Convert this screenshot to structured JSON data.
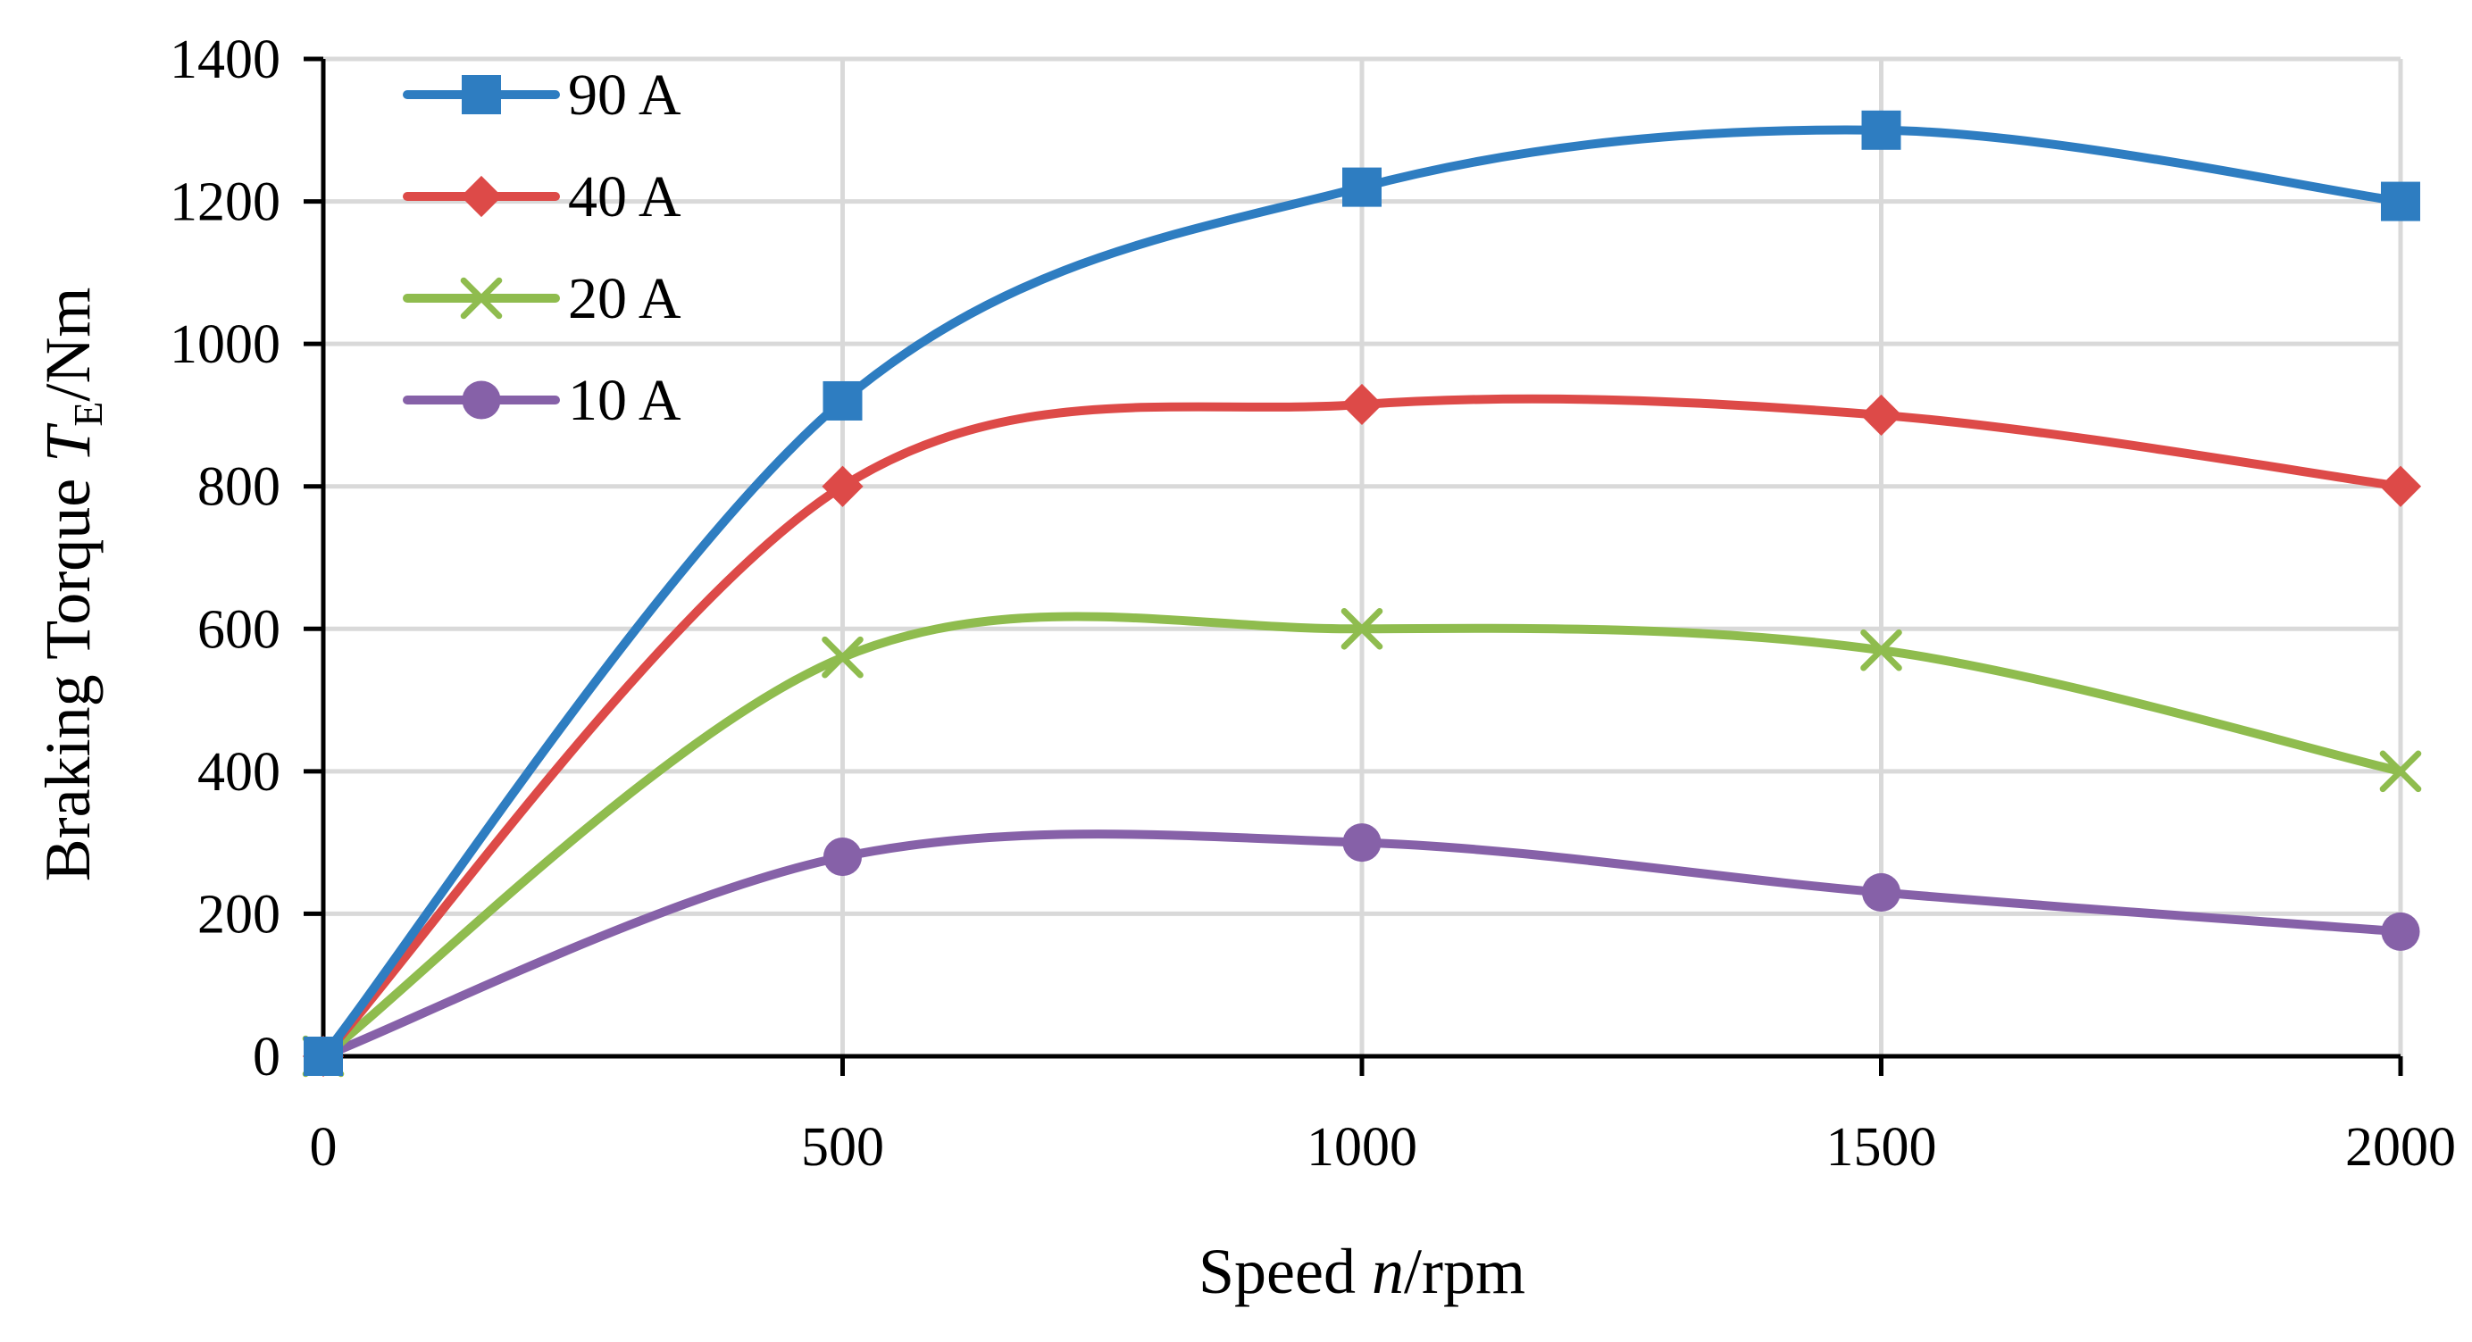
{
  "chart_data": {
    "type": "line",
    "title": "",
    "xlabel": "Speed n/rpm",
    "xlabel_parts": {
      "prefix": "Speed ",
      "var": "n",
      "suffix": "/rpm"
    },
    "ylabel": "Braking Torque T_E/Nm",
    "ylabel_parts": {
      "prefix": "Braking Torque ",
      "var": "T",
      "sub": "E",
      "suffix": "/Nm"
    },
    "x": [
      0,
      500,
      1000,
      1500,
      2000
    ],
    "xlim": [
      0,
      2000
    ],
    "ylim": [
      0,
      1400
    ],
    "xticks": [
      0,
      500,
      1000,
      1500,
      2000
    ],
    "yticks": [
      0,
      200,
      400,
      600,
      800,
      1000,
      1200,
      1400
    ],
    "grid": true,
    "legend_position": "top-left",
    "series": [
      {
        "name": "90 A",
        "color": "#2e7dc1",
        "marker": "square",
        "values": [
          0,
          920,
          1220,
          1300,
          1200
        ]
      },
      {
        "name": "40 A",
        "color": "#dd4a48",
        "marker": "diamond",
        "values": [
          0,
          800,
          915,
          900,
          800
        ]
      },
      {
        "name": "20 A",
        "color": "#8fbc4e",
        "marker": "x",
        "values": [
          0,
          560,
          600,
          570,
          400
        ]
      },
      {
        "name": "10 A",
        "color": "#8661a8",
        "marker": "circle",
        "values": [
          0,
          280,
          300,
          230,
          175
        ]
      }
    ]
  }
}
